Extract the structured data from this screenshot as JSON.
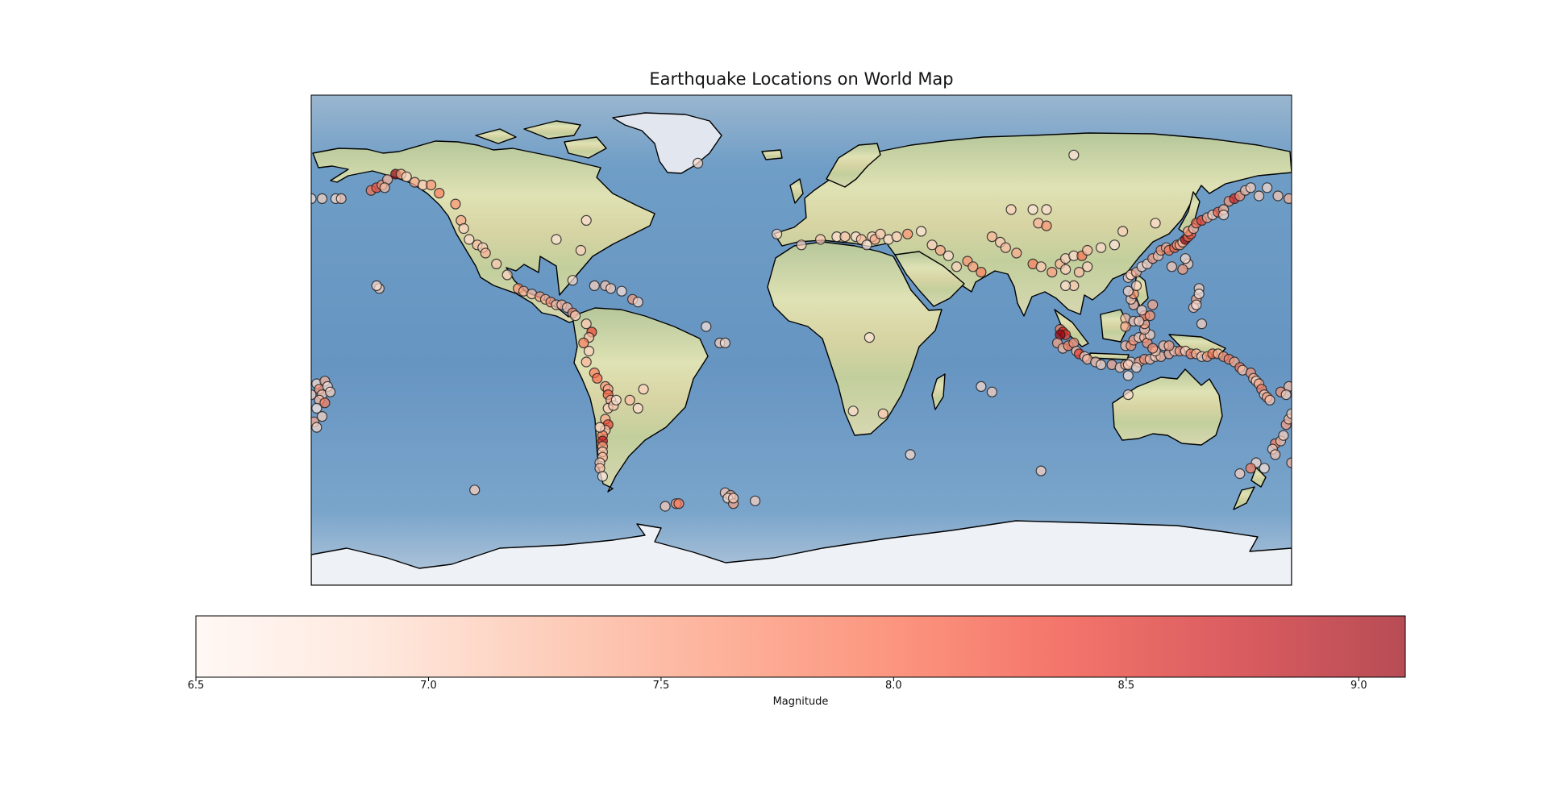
{
  "chart_data": {
    "type": "scatter",
    "title": "Earthquake Locations on World Map",
    "projection": "plate-carree",
    "xlim": [
      -180,
      180
    ],
    "ylim": [
      -90,
      90
    ],
    "points": [
      [
        -178,
        -16,
        6.9
      ],
      [
        -177,
        -18,
        7.6
      ],
      [
        -176,
        -20,
        7.1
      ],
      [
        -175,
        -15,
        7.3
      ],
      [
        -174,
        -17,
        6.8
      ],
      [
        -173,
        -19,
        7.0
      ],
      [
        -177,
        -22,
        7.2
      ],
      [
        -175,
        -23,
        7.8
      ],
      [
        -178,
        -25,
        6.7
      ],
      [
        -176,
        -28,
        7.0
      ],
      [
        -179,
        -30,
        7.4
      ],
      [
        -178,
        -32,
        6.9
      ],
      [
        -180,
        52,
        6.8
      ],
      [
        -176,
        52,
        7.0
      ],
      [
        -171,
        52,
        6.9
      ],
      [
        -169,
        52,
        7.1
      ],
      [
        -158,
        55,
        7.9
      ],
      [
        -156,
        56,
        8.2
      ],
      [
        -154,
        57,
        7.6
      ],
      [
        -152,
        59,
        7.3
      ],
      [
        -149,
        61,
        9.1
      ],
      [
        -147,
        61,
        7.5
      ],
      [
        -145,
        60,
        7.0
      ],
      [
        -153,
        56,
        7.2
      ],
      [
        -142,
        58,
        7.4
      ],
      [
        -139,
        57,
        7.1
      ],
      [
        -136,
        57,
        7.6
      ],
      [
        -133,
        54,
        7.8
      ],
      [
        -127,
        50,
        7.6
      ],
      [
        -125,
        44,
        7.4
      ],
      [
        -124,
        41,
        7.0
      ],
      [
        -122,
        37,
        6.9
      ],
      [
        -119,
        35,
        7.2
      ],
      [
        -117,
        34,
        7.0
      ],
      [
        -116,
        32,
        7.3
      ],
      [
        -112,
        28,
        7.1
      ],
      [
        -108,
        24,
        7.0
      ],
      [
        -104,
        19,
        7.6
      ],
      [
        -102,
        18,
        7.4
      ],
      [
        -99,
        17,
        7.2
      ],
      [
        -96,
        16,
        7.5
      ],
      [
        -94,
        15,
        7.3
      ],
      [
        -92,
        14,
        7.6
      ],
      [
        -90,
        13,
        7.1
      ],
      [
        -88,
        13,
        7.3
      ],
      [
        -86,
        12,
        7.2
      ],
      [
        -84,
        10,
        7.7
      ],
      [
        -83,
        9,
        7.0
      ],
      [
        -79,
        6,
        7.1
      ],
      [
        -77,
        3,
        8.3
      ],
      [
        -78,
        1,
        7.2
      ],
      [
        -80,
        -1,
        7.8
      ],
      [
        -78,
        -4,
        7.0
      ],
      [
        -79,
        -8,
        7.3
      ],
      [
        -76,
        -12,
        7.8
      ],
      [
        -75,
        -14,
        8.0
      ],
      [
        -72,
        -17,
        7.6
      ],
      [
        -71,
        -18,
        7.4
      ],
      [
        -71,
        -20,
        8.1
      ],
      [
        -70,
        -22,
        7.3
      ],
      [
        -71,
        -25,
        7.0
      ],
      [
        -69,
        -24,
        7.1
      ],
      [
        -68,
        -22,
        6.8
      ],
      [
        -63,
        -22,
        7.2
      ],
      [
        -72,
        -29,
        7.4
      ],
      [
        -71,
        -31,
        8.3
      ],
      [
        -72,
        -33,
        7.2
      ],
      [
        -73,
        -35,
        7.8
      ],
      [
        -73,
        -37,
        8.8
      ],
      [
        -73,
        -39,
        7.5
      ],
      [
        -73,
        -41,
        7.1
      ],
      [
        -73,
        -43,
        7.3
      ],
      [
        -74,
        -45,
        7.0
      ],
      [
        -74,
        -47,
        7.2
      ],
      [
        -73,
        -50,
        6.8
      ],
      [
        -58,
        -18,
        7.0
      ],
      [
        -60,
        -25,
        6.9
      ],
      [
        -74,
        -32,
        7.0
      ],
      [
        -72,
        20,
        7.1
      ],
      [
        -70,
        19,
        7.0
      ],
      [
        -66,
        18,
        6.8
      ],
      [
        -62,
        15,
        7.5
      ],
      [
        -60,
        14,
        6.9
      ],
      [
        -76,
        20,
        7.0
      ],
      [
        -84,
        22,
        6.9
      ],
      [
        -155,
        19,
        7.0
      ],
      [
        -156,
        20,
        6.9
      ],
      [
        -35,
        5,
        6.8
      ],
      [
        -30,
        -1,
        7.0
      ],
      [
        -28,
        -1,
        6.9
      ],
      [
        -17,
        -59,
        7.0
      ],
      [
        -28,
        -56,
        7.1
      ],
      [
        -26,
        -57,
        7.3
      ],
      [
        -27,
        -58,
        6.9
      ],
      [
        -25,
        -60,
        7.5
      ],
      [
        -25,
        -58,
        7.0
      ],
      [
        -50,
        -61,
        7.1
      ],
      [
        -46,
        -60,
        7.6
      ],
      [
        -45,
        -60,
        7.8
      ],
      [
        -38,
        65,
        6.9
      ],
      [
        -90,
        37,
        6.8
      ],
      [
        -81,
        33,
        7.0
      ],
      [
        -79,
        44,
        6.9
      ],
      [
        -9,
        39,
        6.9
      ],
      [
        0,
        35,
        7.0
      ],
      [
        7,
        37,
        7.1
      ],
      [
        13,
        38,
        6.9
      ],
      [
        16,
        38,
        7.1
      ],
      [
        20,
        38,
        6.9
      ],
      [
        22,
        37,
        7.2
      ],
      [
        24,
        35,
        6.8
      ],
      [
        26,
        38,
        7.0
      ],
      [
        27,
        37,
        7.4
      ],
      [
        29,
        39,
        7.1
      ],
      [
        32,
        37,
        6.9
      ],
      [
        35,
        38,
        7.0
      ],
      [
        39,
        39,
        7.6
      ],
      [
        44,
        40,
        6.8
      ],
      [
        48,
        35,
        7.0
      ],
      [
        51,
        33,
        7.4
      ],
      [
        54,
        31,
        6.9
      ],
      [
        57,
        27,
        7.0
      ],
      [
        61,
        29,
        7.6
      ],
      [
        63,
        27,
        7.5
      ],
      [
        66,
        25,
        7.8
      ],
      [
        70,
        38,
        7.3
      ],
      [
        73,
        36,
        7.1
      ],
      [
        75,
        34,
        7.2
      ],
      [
        79,
        32,
        7.4
      ],
      [
        85,
        28,
        7.8
      ],
      [
        88,
        27,
        7.1
      ],
      [
        92,
        25,
        7.5
      ],
      [
        95,
        28,
        7.3
      ],
      [
        97,
        26,
        7.0
      ],
      [
        87,
        43,
        7.3
      ],
      [
        90,
        42,
        7.6
      ],
      [
        97,
        30,
        7.0
      ],
      [
        100,
        31,
        6.9
      ],
      [
        103,
        31,
        7.9
      ],
      [
        105,
        33,
        7.2
      ],
      [
        110,
        34,
        6.9
      ],
      [
        115,
        35,
        6.8
      ],
      [
        118,
        40,
        7.0
      ],
      [
        121,
        24,
        7.3
      ],
      [
        120,
        23,
        7.0
      ],
      [
        102,
        25,
        7.2
      ],
      [
        105,
        27,
        7.0
      ],
      [
        100,
        20,
        7.1
      ],
      [
        97,
        20,
        6.9
      ],
      [
        77,
        48,
        7.0
      ],
      [
        85,
        48,
        6.8
      ],
      [
        90,
        48,
        6.9
      ],
      [
        100,
        68,
        6.8
      ],
      [
        95,
        4,
        7.8
      ],
      [
        96,
        3,
        8.6
      ],
      [
        97,
        2,
        8.4
      ],
      [
        95,
        2,
        9.1
      ],
      [
        94,
        -1,
        7.5
      ],
      [
        96,
        -3,
        7.2
      ],
      [
        98,
        -2,
        7.8
      ],
      [
        100,
        -1,
        7.6
      ],
      [
        101,
        -4,
        7.2
      ],
      [
        102,
        -5,
        8.4
      ],
      [
        104,
        -6,
        7.0
      ],
      [
        105,
        -7,
        7.3
      ],
      [
        108,
        -8,
        7.2
      ],
      [
        110,
        -9,
        7.0
      ],
      [
        114,
        -9,
        7.4
      ],
      [
        117,
        -10,
        7.1
      ],
      [
        119,
        -9,
        7.3
      ],
      [
        121,
        -8,
        7.0
      ],
      [
        124,
        -8,
        7.5
      ],
      [
        126,
        -7,
        7.6
      ],
      [
        128,
        -7,
        7.2
      ],
      [
        130,
        -6,
        7.0
      ],
      [
        132,
        -6,
        7.3
      ],
      [
        135,
        -5,
        7.4
      ],
      [
        137,
        -4,
        7.1
      ],
      [
        139,
        -4,
        7.6
      ],
      [
        141,
        -4,
        7.0
      ],
      [
        143,
        -5,
        7.8
      ],
      [
        145,
        -5,
        7.3
      ],
      [
        147,
        -6,
        7.0
      ],
      [
        149,
        -6,
        7.5
      ],
      [
        151,
        -5,
        7.9
      ],
      [
        153,
        -5,
        7.3
      ],
      [
        155,
        -6,
        7.6
      ],
      [
        157,
        -7,
        7.8
      ],
      [
        159,
        -8,
        7.4
      ],
      [
        161,
        -10,
        7.8
      ],
      [
        162,
        -11,
        7.1
      ],
      [
        165,
        -12,
        7.6
      ],
      [
        166,
        -14,
        7.3
      ],
      [
        167,
        -15,
        7.0
      ],
      [
        168,
        -16,
        7.4
      ],
      [
        169,
        -18,
        7.8
      ],
      [
        170,
        -20,
        7.0
      ],
      [
        171,
        -21,
        7.5
      ],
      [
        172,
        -22,
        7.1
      ],
      [
        176,
        -19,
        7.6
      ],
      [
        179,
        -17,
        7.2
      ],
      [
        178,
        -20,
        7.0
      ],
      [
        120,
        -9,
        7.0
      ],
      [
        123,
        -10,
        6.9
      ],
      [
        120,
        -13,
        6.8
      ],
      [
        119,
        -2,
        7.2
      ],
      [
        121,
        -2,
        7.6
      ],
      [
        122,
        0,
        7.5
      ],
      [
        124,
        1,
        7.0
      ],
      [
        126,
        1,
        7.3
      ],
      [
        127,
        -1,
        7.6
      ],
      [
        128,
        2,
        7.0
      ],
      [
        126,
        4,
        7.2
      ],
      [
        126,
        6,
        7.5
      ],
      [
        126,
        9,
        7.8
      ],
      [
        125,
        11,
        7.0
      ],
      [
        122,
        13,
        7.3
      ],
      [
        121,
        15,
        7.1
      ],
      [
        122,
        17,
        7.6
      ],
      [
        123,
        20,
        7.0
      ],
      [
        120,
        18,
        6.9
      ],
      [
        119,
        8,
        7.2
      ],
      [
        119,
        5,
        7.4
      ],
      [
        122,
        7,
        7.1
      ],
      [
        124,
        7,
        7.0
      ],
      [
        130,
        -4,
        7.0
      ],
      [
        133,
        -2,
        7.2
      ],
      [
        135,
        -2,
        7.4
      ],
      [
        129,
        -3,
        7.6
      ],
      [
        121,
        24,
        7.0
      ],
      [
        123,
        25,
        7.3
      ],
      [
        125,
        27,
        6.9
      ],
      [
        127,
        28,
        7.0
      ],
      [
        129,
        30,
        7.5
      ],
      [
        131,
        31,
        7.1
      ],
      [
        132,
        33,
        7.6
      ],
      [
        134,
        34,
        7.3
      ],
      [
        135,
        33,
        7.9
      ],
      [
        137,
        34,
        8.0
      ],
      [
        138,
        35,
        7.6
      ],
      [
        139,
        35,
        7.4
      ],
      [
        140,
        36,
        7.3
      ],
      [
        141,
        37,
        9.1
      ],
      [
        142,
        38,
        7.9
      ],
      [
        143,
        39,
        8.2
      ],
      [
        142,
        40,
        7.5
      ],
      [
        144,
        41,
        7.2
      ],
      [
        145,
        43,
        8.0
      ],
      [
        147,
        44,
        8.3
      ],
      [
        149,
        45,
        7.4
      ],
      [
        151,
        46,
        7.0
      ],
      [
        153,
        47,
        8.1
      ],
      [
        155,
        48,
        7.3
      ],
      [
        157,
        51,
        7.6
      ],
      [
        159,
        52,
        8.6
      ],
      [
        161,
        53,
        7.6
      ],
      [
        163,
        55,
        7.2
      ],
      [
        165,
        56,
        7.0
      ],
      [
        155,
        46,
        6.9
      ],
      [
        146,
        19,
        7.0
      ],
      [
        145,
        15,
        7.4
      ],
      [
        146,
        17,
        6.8
      ],
      [
        144,
        12,
        7.1
      ],
      [
        145,
        13,
        6.9
      ],
      [
        147,
        6,
        7.0
      ],
      [
        142,
        28,
        7.0
      ],
      [
        140,
        26,
        7.5
      ],
      [
        141,
        30,
        6.9
      ],
      [
        136,
        27,
        7.1
      ],
      [
        129,
        13,
        7.4
      ],
      [
        128,
        9,
        7.6
      ],
      [
        130,
        43,
        6.9
      ],
      [
        168,
        53,
        7.0
      ],
      [
        171,
        56,
        6.9
      ],
      [
        175,
        53,
        7.1
      ],
      [
        179,
        52,
        7.3
      ],
      [
        174,
        -38,
        7.8
      ],
      [
        173,
        -40,
        7.0
      ],
      [
        174,
        -42,
        7.1
      ],
      [
        176,
        -37,
        7.2
      ],
      [
        177,
        -35,
        7.0
      ],
      [
        178,
        -31,
        7.5
      ],
      [
        179,
        -29,
        7.2
      ],
      [
        180,
        -27,
        7.0
      ],
      [
        167,
        -45,
        6.9
      ],
      [
        165,
        -47,
        7.8
      ],
      [
        161,
        -49,
        7.0
      ],
      [
        170,
        -47,
        6.8
      ],
      [
        120,
        -20,
        6.9
      ],
      [
        70,
        -19,
        7.0
      ],
      [
        66,
        -17,
        6.9
      ],
      [
        25,
        1,
        6.8
      ],
      [
        19,
        -26,
        6.9
      ],
      [
        30,
        -27,
        7.1
      ],
      [
        40,
        -42,
        6.9
      ],
      [
        88,
        -48,
        7.0
      ],
      [
        -120,
        -55,
        7.0
      ],
      [
        -180,
        -20,
        7.0
      ],
      [
        180,
        -45,
        7.3
      ]
    ],
    "colorbar": {
      "label": "Magnitude",
      "min": 6.5,
      "max": 9.1,
      "ticks": [
        "6.5",
        "7.0",
        "7.5",
        "8.0",
        "8.5",
        "9.0"
      ],
      "tick_values": [
        6.5,
        7.0,
        7.5,
        8.0,
        8.5,
        9.0
      ],
      "cmap": [
        "#fff5f0",
        "#fee0d2",
        "#fcbba1",
        "#fc9272",
        "#fb6a4a",
        "#ef3b2c",
        "#cb181d",
        "#99000d"
      ],
      "alpha": 0.7
    }
  }
}
